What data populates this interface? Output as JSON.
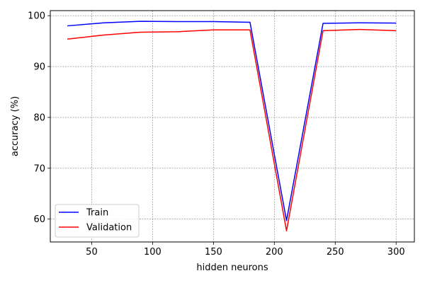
{
  "chart_data": {
    "type": "line",
    "title": "",
    "xlabel": "hidden neurons",
    "ylabel": "accuracy (%)",
    "xlim": [
      16,
      315
    ],
    "ylim": [
      55.5,
      101
    ],
    "xticks": [
      50,
      100,
      150,
      200,
      250,
      300
    ],
    "yticks": [
      60,
      70,
      80,
      90,
      100
    ],
    "grid": true,
    "legend_position": "lower-left",
    "x": [
      30,
      60,
      90,
      120,
      150,
      180,
      210,
      240,
      270,
      300
    ],
    "series": [
      {
        "name": "Train",
        "color": "#0000ff",
        "values": [
          98.0,
          98.6,
          98.9,
          98.85,
          98.85,
          98.7,
          59.7,
          98.5,
          98.6,
          98.55
        ]
      },
      {
        "name": "Validation",
        "color": "#ff0000",
        "values": [
          95.4,
          96.2,
          96.75,
          96.85,
          97.2,
          97.2,
          57.7,
          97.05,
          97.3,
          97.05
        ]
      }
    ]
  }
}
